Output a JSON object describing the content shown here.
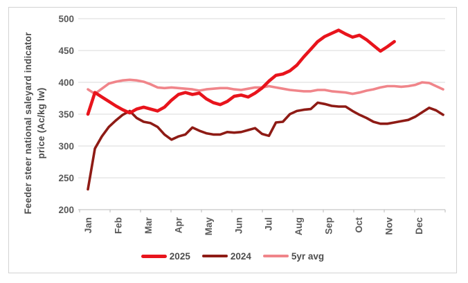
{
  "chart_data": {
    "type": "line",
    "title": "",
    "ylabel": "Feeder steer national saleyard indicator price (Ac/kg lw)",
    "ylabel_lines": [
      "Feeder steer national saleyard indicator",
      "price (Ac/kg lw)"
    ],
    "xlabel": "",
    "ylim": [
      200,
      500
    ],
    "y_ticks": [
      500,
      450,
      400,
      350,
      300,
      250,
      200
    ],
    "x_categories": [
      "Jan",
      "Feb",
      "Mar",
      "Apr",
      "May",
      "Jun",
      "Jul",
      "Aug",
      "Sep",
      "Oct",
      "Nov",
      "Dec"
    ],
    "frequency": "weekly",
    "grid": "horizontal",
    "legend_position": "bottom",
    "axis_text_color": "#595959",
    "series": [
      {
        "name": "2025",
        "color": "#e8141c",
        "values": [
          350,
          384,
          377,
          370,
          363,
          357,
          352,
          358,
          361,
          358,
          355,
          361,
          372,
          381,
          384,
          381,
          383,
          374,
          368,
          365,
          370,
          378,
          380,
          377,
          383,
          391,
          402,
          411,
          413,
          418,
          427,
          440,
          452,
          464,
          472,
          477,
          482,
          476,
          471,
          474,
          467,
          458,
          449,
          456,
          464
        ]
      },
      {
        "name": "2024",
        "color": "#8e1b15",
        "values": [
          232,
          296,
          315,
          330,
          340,
          349,
          355,
          344,
          338,
          336,
          330,
          318,
          310,
          315,
          318,
          329,
          324,
          320,
          318,
          318,
          322,
          321,
          322,
          325,
          328,
          319,
          316,
          337,
          338,
          350,
          355,
          357,
          358,
          368,
          366,
          363,
          362,
          362,
          355,
          349,
          344,
          338,
          335,
          335,
          337,
          339,
          341,
          346,
          353,
          360,
          356,
          349
        ]
      },
      {
        "name": "5yr avg",
        "color": "#f0858a",
        "values": [
          389,
          382,
          390,
          398,
          401,
          403,
          404,
          403,
          401,
          397,
          392,
          391,
          392,
          391,
          390,
          389,
          387,
          389,
          390,
          391,
          391,
          389,
          388,
          390,
          392,
          392,
          394,
          392,
          390,
          388,
          387,
          386,
          386,
          388,
          388,
          386,
          385,
          384,
          382,
          384,
          387,
          389,
          392,
          394,
          394,
          393,
          394,
          396,
          400,
          399,
          394,
          389
        ]
      }
    ]
  }
}
